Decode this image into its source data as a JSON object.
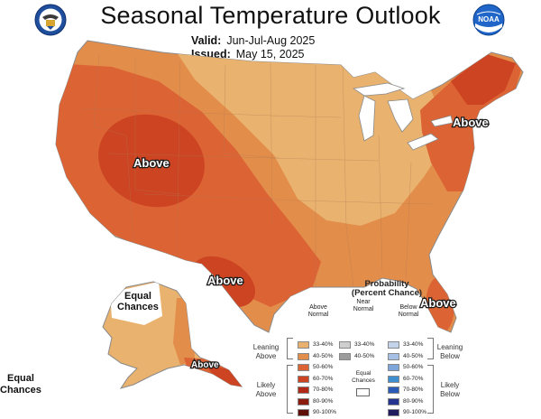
{
  "header": {
    "title": "Seasonal Temperature Outlook",
    "valid_label": "Valid:",
    "valid_value": "Jun-Jul-Aug 2025",
    "issued_label": "Issued:",
    "issued_value": "May 15, 2025"
  },
  "logos": {
    "left": "doc-seal-icon",
    "right": "noaa-logo-icon"
  },
  "map": {
    "labels": {
      "west": "Above",
      "northeast": "Above",
      "texas": "Above",
      "florida": "Above",
      "alaska_south": "Above",
      "alaska_ec_1": "Equal",
      "alaska_ec_2": "Chances",
      "hawaii_ec_1": "Equal",
      "hawaii_ec_2": "Chances"
    },
    "colors": {
      "above_33_40": "#e9b26e",
      "above_40_50": "#e38d4b",
      "above_50_60": "#dc6334",
      "above_60_70": "#cd4422",
      "water": "#ffffff",
      "border": "#9a9a9a"
    }
  },
  "legend": {
    "title_1": "Probability",
    "title_2": "(Percent Chance)",
    "above_head_1": "Above",
    "above_head_2": "Normal",
    "near_head_1": "Near",
    "near_head_2": "Normal",
    "below_head_1": "Below",
    "below_head_2": "Normal",
    "leaning_above_1": "Leaning",
    "leaning_above_2": "Above",
    "likely_above_1": "Likely",
    "likely_above_2": "Above",
    "leaning_below_1": "Leaning",
    "leaning_below_2": "Below",
    "likely_below_1": "Likely",
    "likely_below_2": "Below",
    "equal_1": "Equal",
    "equal_2": "Chances",
    "above": [
      {
        "label": "33-40%",
        "color": "#e9b26e"
      },
      {
        "label": "40-50%",
        "color": "#e38d4b"
      },
      {
        "label": "50-60%",
        "color": "#dc6334"
      },
      {
        "label": "60-70%",
        "color": "#cd4422"
      },
      {
        "label": "70-80%",
        "color": "#b02a17"
      },
      {
        "label": "80-90%",
        "color": "#8c1b10"
      },
      {
        "label": "90-100%",
        "color": "#5e0f08"
      }
    ],
    "near": [
      {
        "label": "33-40%",
        "color": "#cfcfcf"
      },
      {
        "label": "40-50%",
        "color": "#9c9c9c"
      }
    ],
    "below": [
      {
        "label": "33-40%",
        "color": "#c4d3ec"
      },
      {
        "label": "40-50%",
        "color": "#a6bfe4"
      },
      {
        "label": "50-60%",
        "color": "#7fa6db"
      },
      {
        "label": "60-70%",
        "color": "#3f8ed0"
      },
      {
        "label": "70-80%",
        "color": "#2b5bb4"
      },
      {
        "label": "80-90%",
        "color": "#24348f"
      },
      {
        "label": "90-100%",
        "color": "#1f1d5e"
      }
    ]
  }
}
